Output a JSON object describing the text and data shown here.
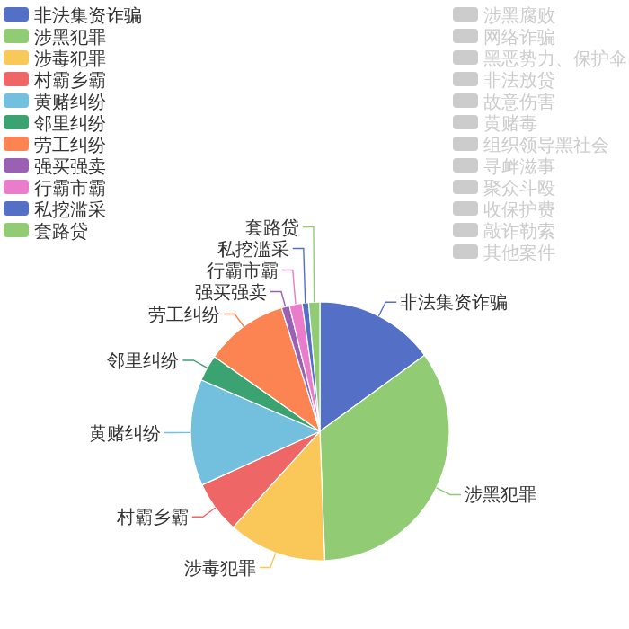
{
  "chart_data": {
    "type": "pie",
    "legend": "left",
    "categories": [
      "非法集资诈骗",
      "涉黑犯罪",
      "涉毒犯罪",
      "村霸乡霸",
      "黄赌纠纷",
      "邻里纠纷",
      "劳工纠纷",
      "强买强卖",
      "行霸市霸",
      "私挖滥采",
      "套路贷",
      "涉黑腐败",
      "网络诈骗",
      "黑恶势力、保护伞",
      "非法放贷",
      "故意伤害",
      "黄赌毒",
      "组织领导黑社会",
      "寻衅滋事",
      "聚众斗殴",
      "收保护费",
      "敲诈勒索",
      "其他案件"
    ],
    "values": [
      15,
      34.4,
      12.3,
      6.5,
      13.3,
      3.3,
      10.4,
      1,
      1.6,
      0.8,
      1.4,
      null,
      null,
      null,
      null,
      null,
      null,
      null,
      null,
      null,
      null,
      null,
      null
    ],
    "colors": [
      "#5470c6",
      "#91cc75",
      "#fac858",
      "#ee6666",
      "#73c0de",
      "#3ba272",
      "#fc8452",
      "#9a60b4",
      "#ea7ccc",
      "#5470c6",
      "#91cc75",
      "#cccccc",
      "#cccccc",
      "#cccccc",
      "#cccccc",
      "#cccccc",
      "#cccccc",
      "#cccccc",
      "#cccccc",
      "#cccccc",
      "#cccccc",
      "#cccccc",
      "#cccccc"
    ]
  }
}
